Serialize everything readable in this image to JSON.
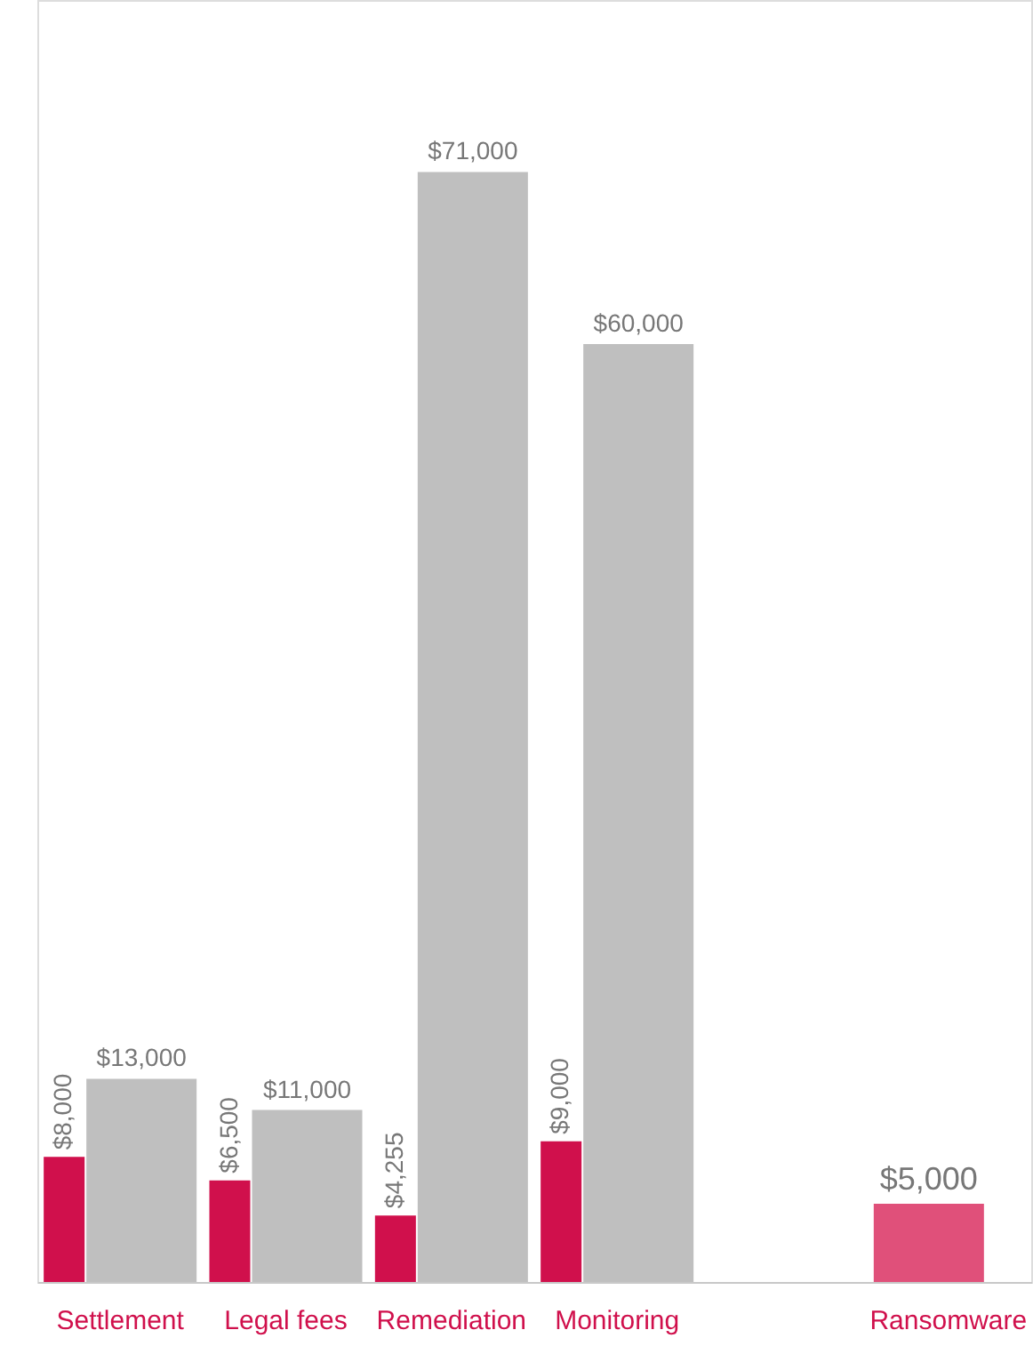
{
  "chart_data": {
    "type": "bar",
    "categories": [
      "Settlement",
      "Legal fees",
      "Remediation",
      "Monitoring",
      null,
      "Ransomware"
    ],
    "series": [
      {
        "color": "#d0104c",
        "values": [
          8000,
          6500,
          4255,
          9000,
          null,
          null
        ],
        "value_labels": [
          "$8,000",
          "$6,500",
          "$4,255",
          "$9,000",
          null,
          null
        ]
      },
      {
        "color": "#bfbfbf",
        "values": [
          13000,
          11000,
          71000,
          60000,
          null,
          null
        ],
        "value_labels": [
          "$13,000",
          "$11,000",
          "$71,000",
          "$60,000",
          null,
          null
        ]
      },
      {
        "color": "#e0507a",
        "values": [
          null,
          null,
          null,
          null,
          null,
          5000
        ],
        "value_labels": [
          null,
          null,
          null,
          null,
          null,
          "$5,000"
        ]
      }
    ],
    "ylim": [
      0,
      82000
    ],
    "tick_labels": "x",
    "grid": false
  }
}
